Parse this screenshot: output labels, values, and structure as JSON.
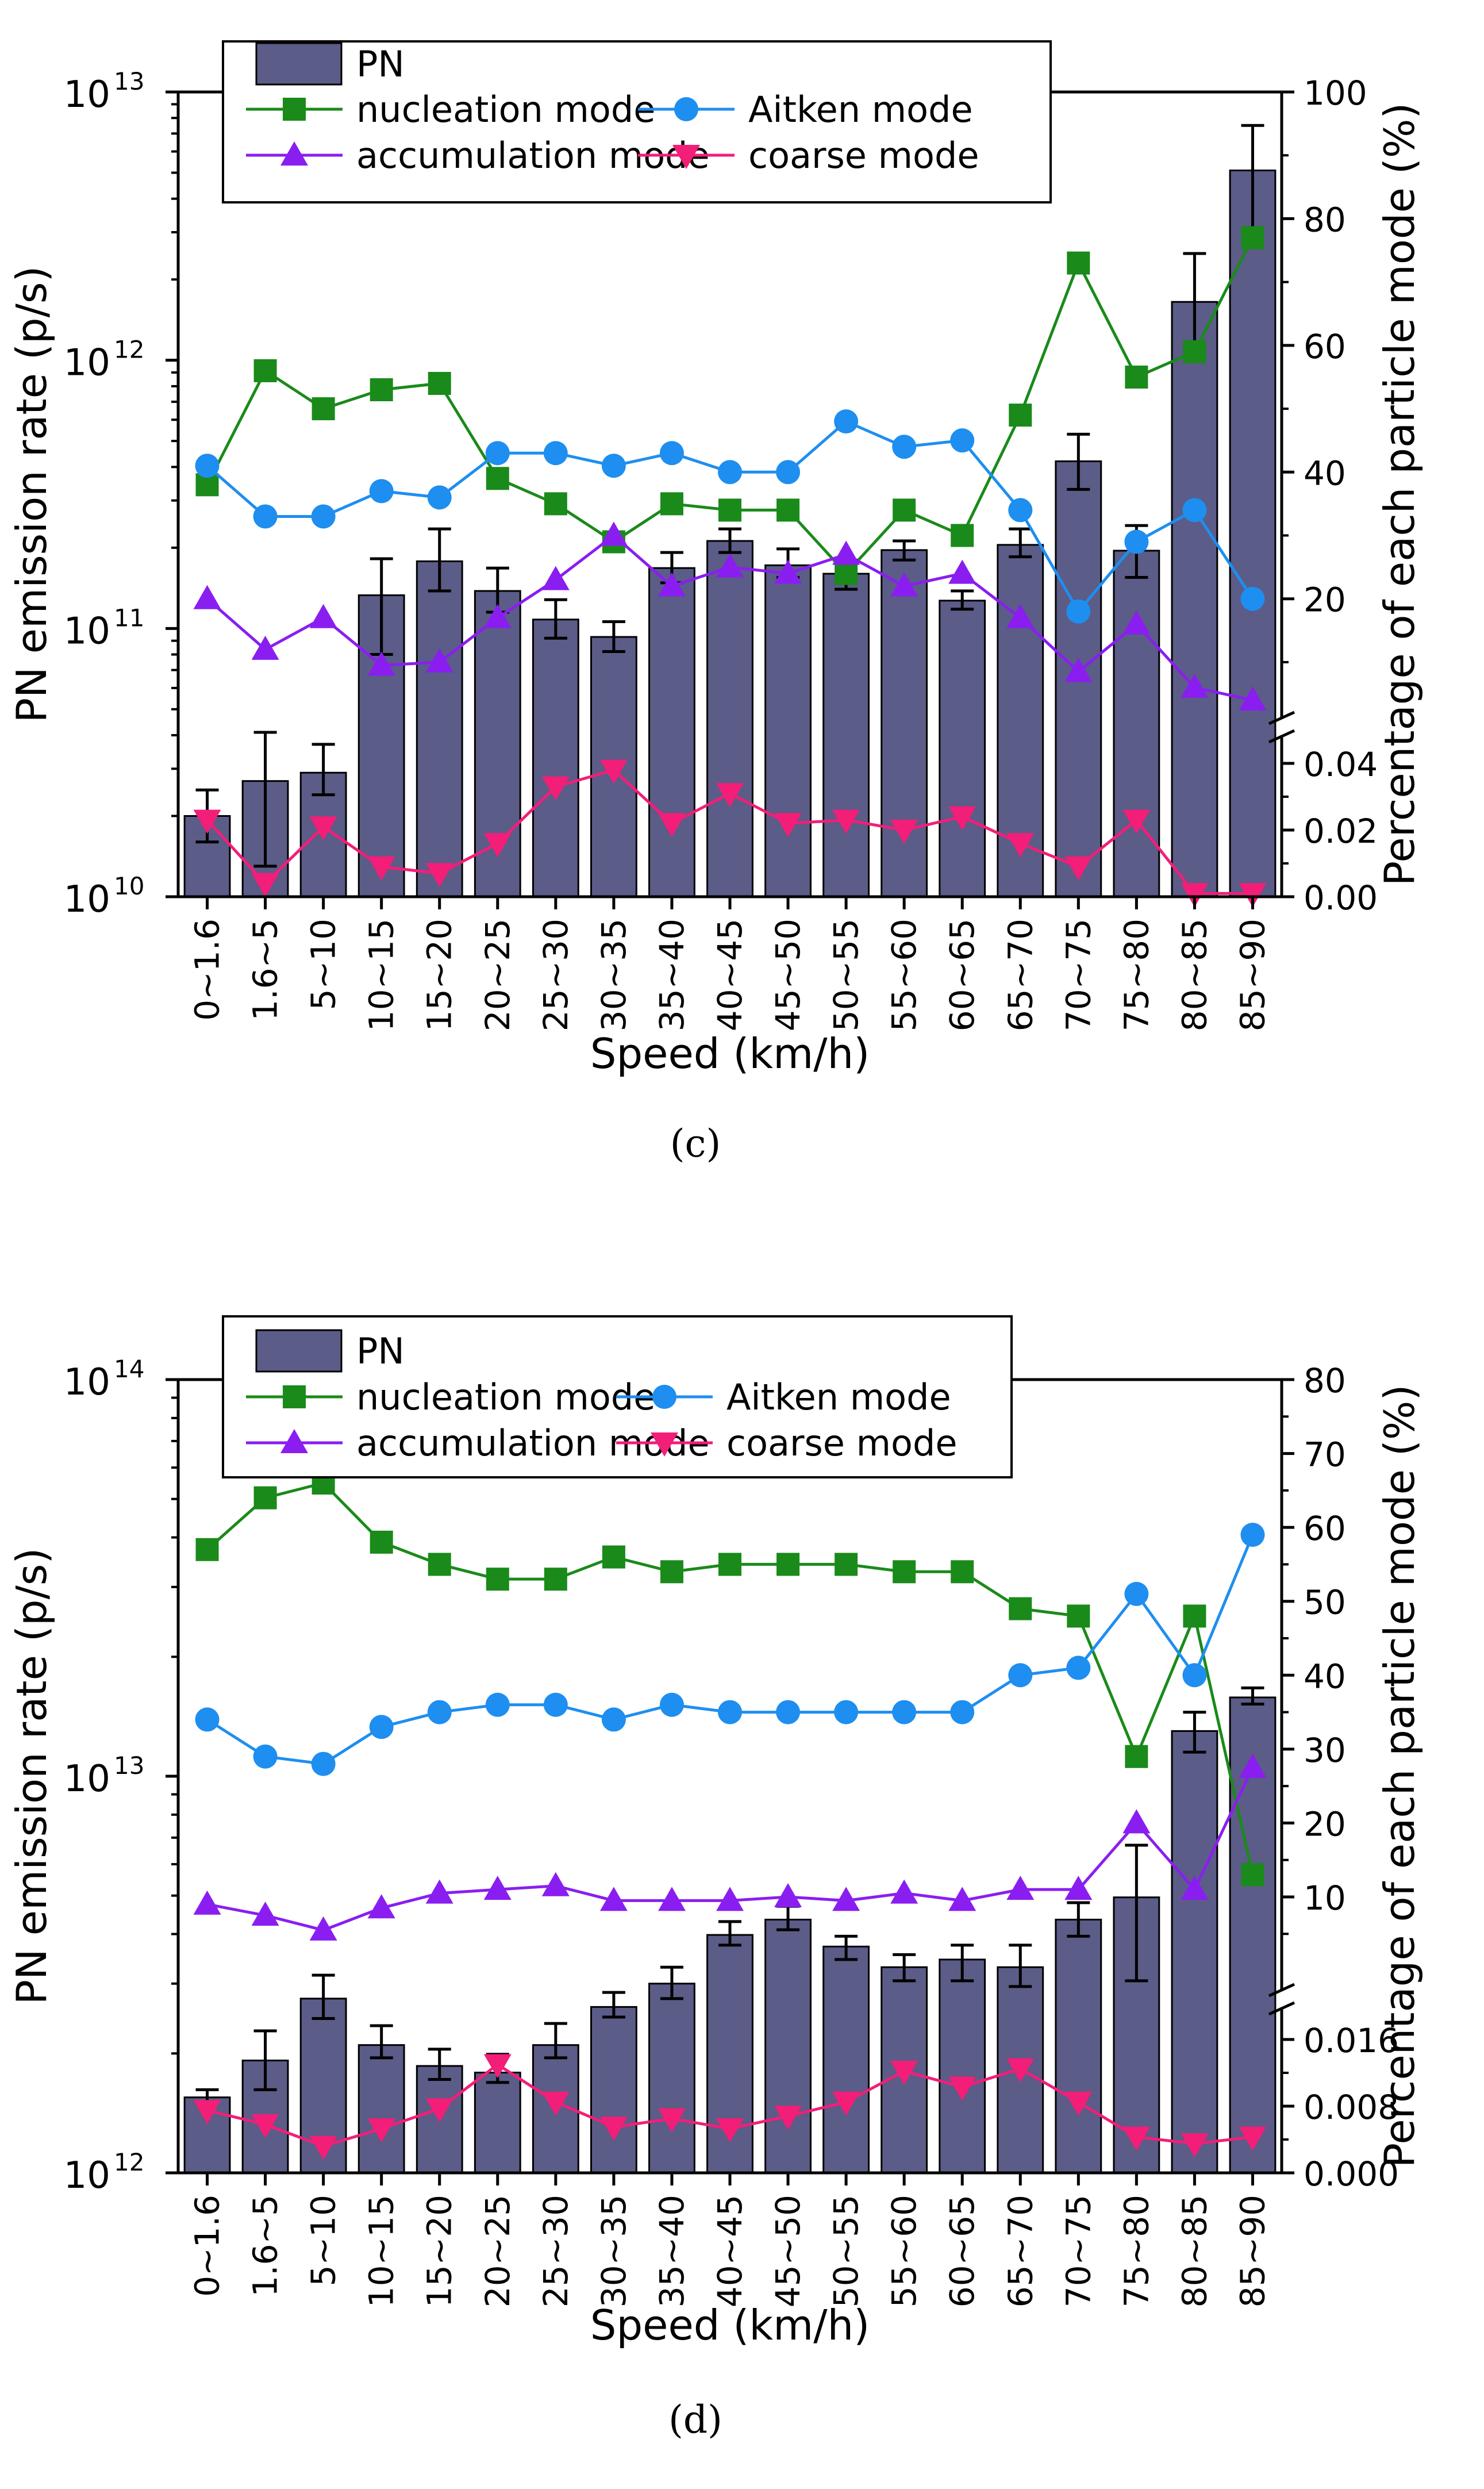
{
  "chart_data": [
    {
      "type": "bar+line",
      "caption": "(c)",
      "xlabel": "Speed (km/h)",
      "ylabel_left": "PN emission rate (p/s)",
      "ylabel_right": "Percentage of each particle mode (%)",
      "left_axis": {
        "scale": "log",
        "range_exponent": [
          10,
          13
        ],
        "tick_exponents": [
          10,
          11,
          12,
          13
        ],
        "tick_labels": [
          "10",
          "10",
          "10",
          "10"
        ],
        "tick_sup": [
          "10",
          "11",
          "12",
          "13"
        ]
      },
      "right_axis_upper": {
        "range": [
          0,
          100
        ],
        "visible_range": [
          7,
          100
        ],
        "ticks": [
          20,
          40,
          60,
          80,
          100
        ],
        "tick_labels": [
          "20",
          "40",
          "60",
          "80",
          "100"
        ]
      },
      "right_axis_lower": {
        "range": [
          0,
          0.05
        ],
        "ticks": [
          0,
          0.02,
          0.04
        ],
        "tick_labels": [
          "0.00",
          "0.02",
          "0.04"
        ]
      },
      "categories": [
        "0~1.6",
        "1.6~5",
        "5~10",
        "10~15",
        "15~20",
        "20~25",
        "25~30",
        "30~35",
        "35~40",
        "40~45",
        "45~50",
        "50~55",
        "55~60",
        "60~65",
        "65~70",
        "70~75",
        "75~80",
        "80~85",
        "85~90"
      ],
      "bars": {
        "name": "PN",
        "values": [
          20000000000.0,
          27000000000.0,
          29000000000.0,
          133000000000.0,
          178000000000.0,
          138000000000.0,
          108000000000.0,
          93000000000.0,
          168000000000.0,
          212000000000.0,
          172000000000.0,
          160000000000.0,
          196000000000.0,
          127000000000.0,
          205000000000.0,
          420000000000.0,
          195000000000.0,
          1650000000000.0,
          5100000000000.0
        ],
        "err_low": [
          16000000000.0,
          13000000000.0,
          24000000000.0,
          80000000000.0,
          138000000000.0,
          115000000000.0,
          92000000000.0,
          82000000000.0,
          148000000000.0,
          192000000000.0,
          155000000000.0,
          140000000000.0,
          180000000000.0,
          118000000000.0,
          185000000000.0,
          330000000000.0,
          155000000000.0,
          1100000000000.0,
          2900000000000.0
        ],
        "err_high": [
          25000000000.0,
          41000000000.0,
          37000000000.0,
          182000000000.0,
          235000000000.0,
          168000000000.0,
          128000000000.0,
          106000000000.0,
          192000000000.0,
          235000000000.0,
          198000000000.0,
          180000000000.0,
          212000000000.0,
          138000000000.0,
          235000000000.0,
          530000000000.0,
          242000000000.0,
          2500000000000.0,
          7500000000000.0
        ]
      },
      "series": [
        {
          "name": "nucleation mode",
          "axis": "upper",
          "values": [
            38,
            56,
            50,
            53,
            54,
            39,
            35,
            29,
            35,
            34,
            34,
            24,
            34,
            30,
            49,
            73,
            55,
            59,
            77
          ]
        },
        {
          "name": "Aitken mode",
          "axis": "upper",
          "values": [
            41,
            33,
            33,
            37,
            36,
            43,
            43,
            41,
            43,
            40,
            40,
            48,
            44,
            45,
            34,
            18,
            29,
            34,
            20
          ]
        },
        {
          "name": "accumulation mode",
          "axis": "upper",
          "values": [
            20,
            12,
            17,
            9.5,
            10,
            17,
            23,
            30,
            22,
            25,
            24,
            27,
            22,
            24,
            17,
            8.5,
            16,
            6,
            4
          ]
        },
        {
          "name": "coarse mode",
          "axis": "lower",
          "values": [
            0.023,
            0.004,
            0.021,
            0.009,
            0.007,
            0.016,
            0.033,
            0.038,
            0.022,
            0.031,
            0.022,
            0.023,
            0.02,
            0.024,
            0.016,
            0.009,
            0.023,
            0.001,
            0.001
          ]
        }
      ]
    },
    {
      "type": "bar+line",
      "caption": "(d)",
      "xlabel": "Speed (km/h)",
      "ylabel_left": "PN emission rate (p/s)",
      "ylabel_right": "Percentage of each particle mode (%)",
      "left_axis": {
        "scale": "log",
        "range_exponent": [
          12,
          14
        ],
        "tick_exponents": [
          12,
          13,
          14
        ],
        "tick_labels": [
          "10",
          "10",
          "10"
        ],
        "tick_sup": [
          "12",
          "13",
          "14"
        ]
      },
      "right_axis_upper": {
        "range": [
          0,
          80
        ],
        "visible_range": [
          3,
          80
        ],
        "ticks": [
          10,
          20,
          30,
          40,
          50,
          60,
          70,
          80
        ],
        "tick_labels": [
          "10",
          "20",
          "30",
          "40",
          "50",
          "60",
          "70",
          "80"
        ]
      },
      "right_axis_lower": {
        "range": [
          0,
          0.02
        ],
        "ticks": [
          0,
          0.008,
          0.016
        ],
        "tick_labels": [
          "0.000",
          "0.008",
          "0.016"
        ]
      },
      "categories": [
        "0~1.6",
        "1.6~5",
        "5~10",
        "10~15",
        "15~20",
        "20~25",
        "25~30",
        "30~35",
        "35~40",
        "40~45",
        "45~50",
        "50~55",
        "55~60",
        "60~65",
        "65~70",
        "70~75",
        "75~80",
        "80~85",
        "85~90"
      ],
      "bars": {
        "name": "PN",
        "values": [
          1550000000000.0,
          1920000000000.0,
          2750000000000.0,
          2100000000000.0,
          1860000000000.0,
          1790000000000.0,
          2100000000000.0,
          2620000000000.0,
          3000000000000.0,
          3980000000000.0,
          4350000000000.0,
          3720000000000.0,
          3300000000000.0,
          3450000000000.0,
          3300000000000.0,
          4350000000000.0,
          4950000000000.0,
          13000000000000.0,
          15800000000000.0
        ],
        "err_low": [
          1500000000000.0,
          1620000000000.0,
          2450000000000.0,
          1950000000000.0,
          1720000000000.0,
          1690000000000.0,
          1950000000000.0,
          2470000000000.0,
          2750000000000.0,
          3750000000000.0,
          4100000000000.0,
          3450000000000.0,
          3050000000000.0,
          3050000000000.0,
          2950000000000.0,
          3950000000000.0,
          3050000000000.0,
          11500000000000.0,
          15200000000000.0
        ],
        "err_high": [
          1620000000000.0,
          2280000000000.0,
          3150000000000.0,
          2350000000000.0,
          2050000000000.0,
          1990000000000.0,
          2380000000000.0,
          2850000000000.0,
          3300000000000.0,
          4300000000000.0,
          4700000000000.0,
          3950000000000.0,
          3550000000000.0,
          3750000000000.0,
          3750000000000.0,
          4800000000000.0,
          6700000000000.0,
          14500000000000.0,
          16700000000000.0
        ]
      },
      "series": [
        {
          "name": "nucleation mode",
          "axis": "upper",
          "values": [
            57,
            64,
            66,
            58,
            55,
            53,
            53,
            56,
            54,
            55,
            55,
            55,
            54,
            54,
            49,
            48,
            29,
            48,
            13
          ]
        },
        {
          "name": "Aitken mode",
          "axis": "upper",
          "values": [
            34,
            29,
            28,
            33,
            35,
            36,
            36,
            34,
            36,
            35,
            35,
            35,
            35,
            35,
            40,
            41,
            51,
            40,
            59
          ]
        },
        {
          "name": "accumulation mode",
          "axis": "upper",
          "values": [
            9,
            7.5,
            5.5,
            8.5,
            10.5,
            11,
            11.5,
            9.5,
            9.5,
            9.5,
            10,
            9.5,
            10.5,
            9.5,
            11,
            11,
            20,
            11,
            27.5
          ]
        },
        {
          "name": "coarse mode",
          "axis": "lower",
          "values": [
            0.0075,
            0.0058,
            0.0032,
            0.0053,
            0.0077,
            0.013,
            0.0085,
            0.0055,
            0.0065,
            0.0053,
            0.0068,
            0.0085,
            0.0122,
            0.0103,
            0.0125,
            0.0085,
            0.0043,
            0.0035,
            0.0043
          ]
        }
      ]
    }
  ],
  "legend_labels": {
    "pn": "PN",
    "nucleation": "nucleation mode",
    "aitken": "Aitken mode",
    "accumulation": "accumulation mode",
    "coarse": "coarse mode"
  },
  "colors": {
    "bar": "#5B5C87",
    "nucleation": "#1A8A1A",
    "aitken": "#1E8EF0",
    "accumulation": "#8A1EF0",
    "coarse": "#F21E78"
  }
}
